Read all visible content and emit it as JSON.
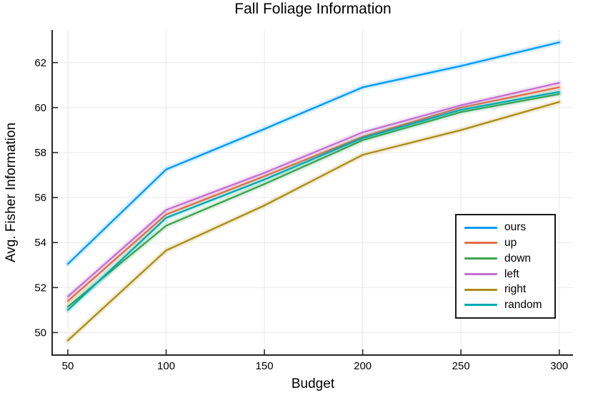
{
  "chart_data": {
    "type": "line",
    "title": "Fall Foliage Information",
    "xlabel": "Budget",
    "ylabel": "Avg. Fisher Information",
    "grid": true,
    "legend_position": "right-center",
    "x": [
      50,
      100,
      150,
      200,
      250,
      300
    ],
    "x_ticks": [
      50,
      100,
      150,
      200,
      250,
      300
    ],
    "y_ticks": [
      50,
      52,
      54,
      56,
      58,
      60,
      62
    ],
    "xlim": [
      42,
      307
    ],
    "ylim": [
      49.0,
      63.45
    ],
    "series": [
      {
        "name": "ours",
        "color": "#009AF9",
        "values": [
          53.05,
          57.25,
          59.05,
          60.9,
          61.85,
          62.9
        ]
      },
      {
        "name": "up",
        "color": "#E36F47",
        "values": [
          51.4,
          55.25,
          56.95,
          58.7,
          60.0,
          60.9
        ]
      },
      {
        "name": "down",
        "color": "#3EA44E",
        "values": [
          51.15,
          54.75,
          56.6,
          58.55,
          59.8,
          60.6
        ]
      },
      {
        "name": "left",
        "color": "#C371D2",
        "values": [
          51.6,
          55.45,
          57.1,
          58.9,
          60.1,
          61.1
        ]
      },
      {
        "name": "right",
        "color": "#AC8E18",
        "values": [
          49.65,
          53.65,
          55.65,
          57.9,
          59.0,
          60.25
        ]
      },
      {
        "name": "random",
        "color": "#00AAAE",
        "values": [
          51.0,
          55.1,
          56.8,
          58.65,
          59.9,
          60.7
        ]
      }
    ],
    "style": {
      "spine_color": "#262626",
      "gridline_color": "#e9e9e9",
      "band_opacity": 0.16
    }
  }
}
